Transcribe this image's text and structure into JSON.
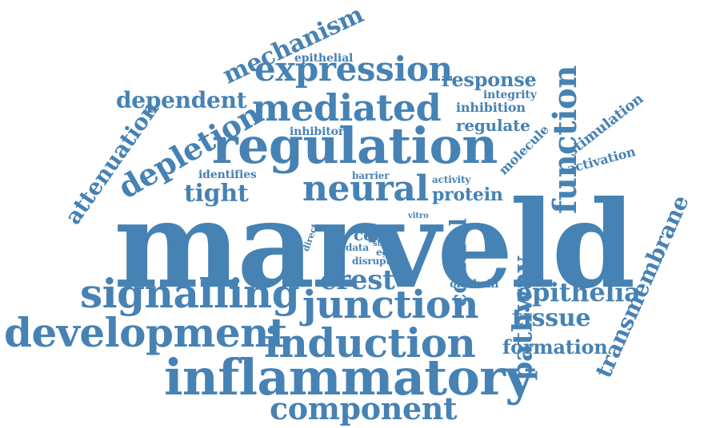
{
  "color": "#4682b4",
  "words": [
    {
      "id": "marveld",
      "text": "marveld"
    },
    {
      "id": "regulation",
      "text": "regulation"
    },
    {
      "id": "inflammatory",
      "text": "inflammatory"
    },
    {
      "id": "development",
      "text": "development"
    },
    {
      "id": "signalling",
      "text": "signalling"
    },
    {
      "id": "induction",
      "text": "induction"
    },
    {
      "id": "junction",
      "text": "junction"
    },
    {
      "id": "mediated",
      "text": "mediated"
    },
    {
      "id": "neural",
      "text": "neural"
    },
    {
      "id": "expression",
      "text": "expression"
    },
    {
      "id": "component",
      "text": "component"
    },
    {
      "id": "function",
      "text": "function"
    },
    {
      "id": "transmembrane",
      "text": "transmembrane"
    },
    {
      "id": "depletion",
      "text": "depletion"
    },
    {
      "id": "mechanism",
      "text": "mechanism"
    },
    {
      "id": "attenuation",
      "text": "attenuation"
    },
    {
      "id": "dependent",
      "text": "dependent"
    },
    {
      "id": "epithelia",
      "text": "epithelia"
    },
    {
      "id": "pathway",
      "text": "pathway"
    },
    {
      "id": "tissue",
      "text": "tissue"
    },
    {
      "id": "crest",
      "text": "crest"
    },
    {
      "id": "control",
      "text": "control"
    },
    {
      "id": "tight",
      "text": "tight"
    },
    {
      "id": "protein",
      "text": "protein"
    },
    {
      "id": "response",
      "text": "response"
    },
    {
      "id": "formation",
      "text": "formation"
    },
    {
      "id": "regulate",
      "text": "regulate"
    },
    {
      "id": "stimulation",
      "text": "stimulation"
    },
    {
      "id": "activation",
      "text": "activation"
    },
    {
      "id": "molecule",
      "text": "molecule"
    },
    {
      "id": "inhibition",
      "text": "inhibition"
    },
    {
      "id": "integrity",
      "text": "integrity"
    },
    {
      "id": "epithelial",
      "text": "epithelial"
    },
    {
      "id": "inhibitor",
      "text": "inhibitor"
    },
    {
      "id": "identifies",
      "text": "identifies"
    },
    {
      "id": "barrier",
      "text": "barrier"
    },
    {
      "id": "activity",
      "text": "activity"
    },
    {
      "id": "clathrin",
      "text": "clathrin"
    },
    {
      "id": "cell",
      "text": "cell"
    },
    {
      "id": "data",
      "text": "data"
    },
    {
      "id": "str",
      "text": "str"
    },
    {
      "id": "egfr",
      "text": "egfr"
    },
    {
      "id": "disrupt",
      "text": "disrupt"
    },
    {
      "id": "direct",
      "text": "direct"
    },
    {
      "id": "vitro",
      "text": "vitro"
    }
  ]
}
